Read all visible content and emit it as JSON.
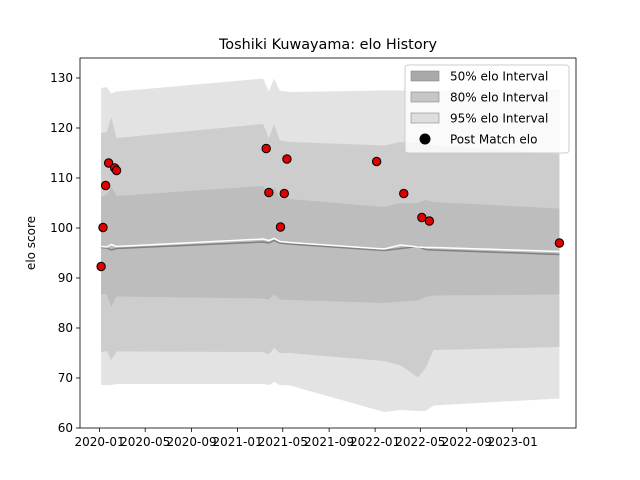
{
  "chart_data": {
    "type": "scatter",
    "title": "Toshiki Kuwayama: elo History",
    "xlabel": "",
    "ylabel": "elo score",
    "ylim": [
      60,
      134
    ],
    "yticks": [
      60,
      70,
      80,
      90,
      100,
      110,
      120,
      130
    ],
    "xlim": [
      "2019-11-10",
      "2023-06-18"
    ],
    "xticks": [
      "2020-01",
      "2020-05",
      "2020-09",
      "2021-01",
      "2021-05",
      "2021-09",
      "2022-01",
      "2022-05",
      "2022-09",
      "2023-01"
    ],
    "grid": false,
    "legend_position": "top-right",
    "legend": [
      {
        "label": "50% elo Interval",
        "color": "#a9a9a9",
        "kind": "patch"
      },
      {
        "label": "80% elo Interval",
        "color": "#c6c6c6",
        "kind": "patch"
      },
      {
        "label": "95% elo Interval",
        "color": "#dedede",
        "kind": "patch"
      },
      {
        "label": "Post Match elo",
        "color": "#000000",
        "kind": "marker"
      }
    ],
    "colors": {
      "band95": "#e3e3e3",
      "band80": "#cdcdcd",
      "band50": "#bdbdbd",
      "mean_line": "#ffffff",
      "median_line": "#808080",
      "point_fill": "#dd0000",
      "point_edge": "#000000"
    },
    "bands": {
      "x": [
        "2020-01-05",
        "2020-01-20",
        "2020-02-01",
        "2020-02-15",
        "2021-03-10",
        "2021-03-25",
        "2021-04-08",
        "2021-04-23",
        "2021-05-20",
        "2022-01-25",
        "2022-03-10",
        "2022-04-25",
        "2022-05-15",
        "2022-06-05",
        "2023-05-05"
      ],
      "p95_upper": [
        128,
        128.2,
        126.9,
        127.3,
        129.9,
        127.3,
        129.9,
        127.5,
        127.2,
        127.5,
        127.5,
        127.5,
        127.5,
        127.5,
        127.8
      ],
      "p95_lower": [
        68.6,
        68.6,
        68.6,
        68.8,
        68.8,
        68.6,
        69.2,
        68.6,
        68.5,
        63.2,
        63.6,
        63.4,
        63.4,
        64.5,
        65.9
      ],
      "p80_upper": [
        119,
        119.2,
        122.2,
        118,
        120.8,
        117.9,
        120.8,
        117.5,
        117.2,
        116.5,
        117.2,
        117.0,
        117.0,
        116.5,
        114.8
      ],
      "p80_lower": [
        75.2,
        75.4,
        73.6,
        75.3,
        75.2,
        74.7,
        76.0,
        75.0,
        75.0,
        73.4,
        72.5,
        70.1,
        72.0,
        75.6,
        76.2
      ],
      "p50_upper": [
        106.2,
        106.6,
        108.3,
        106.4,
        108.4,
        106.5,
        108.2,
        106.0,
        105.8,
        104.2,
        105.0,
        105.0,
        105.6,
        105.2,
        103.9
      ],
      "p50_lower": [
        86.8,
        86.7,
        84.2,
        86.3,
        85.9,
        85.7,
        86.7,
        85.7,
        85.6,
        85.0,
        85.3,
        85.5,
        86.2,
        86.5,
        86.7
      ],
      "mean": [
        96.3,
        96.2,
        96.7,
        96.3,
        97.8,
        97.5,
        97.9,
        97.3,
        97.1,
        95.8,
        96.6,
        96.2,
        96.1,
        96.1,
        95.3
      ],
      "median": [
        96.1,
        96.0,
        95.6,
        95.9,
        97.2,
        97.0,
        97.5,
        97.0,
        96.8,
        95.5,
        95.9,
        96.3,
        95.7,
        95.6,
        94.7
      ]
    },
    "points": [
      {
        "x": "2020-01-05",
        "y": 92.3
      },
      {
        "x": "2020-01-10",
        "y": 100.1
      },
      {
        "x": "2020-01-17",
        "y": 108.5
      },
      {
        "x": "2020-01-25",
        "y": 113.0
      },
      {
        "x": "2020-02-10",
        "y": 112.0
      },
      {
        "x": "2020-02-15",
        "y": 111.5
      },
      {
        "x": "2021-03-18",
        "y": 115.9
      },
      {
        "x": "2021-03-25",
        "y": 107.1
      },
      {
        "x": "2021-04-25",
        "y": 100.2
      },
      {
        "x": "2021-05-05",
        "y": 106.9
      },
      {
        "x": "2021-05-12",
        "y": 113.8
      },
      {
        "x": "2022-01-05",
        "y": 113.3
      },
      {
        "x": "2022-03-18",
        "y": 106.9
      },
      {
        "x": "2022-05-05",
        "y": 102.1
      },
      {
        "x": "2022-05-25",
        "y": 101.4
      },
      {
        "x": "2023-05-05",
        "y": 97.0
      }
    ]
  }
}
